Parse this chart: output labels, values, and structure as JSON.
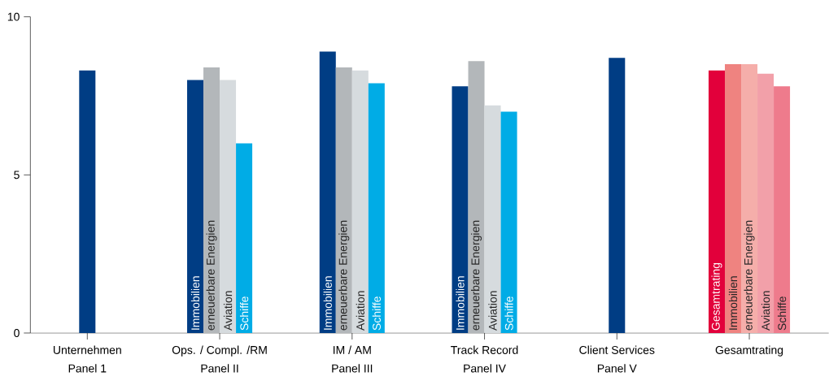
{
  "chart_data": {
    "type": "bar",
    "categories": [
      "Unternehmen\nPanel 1",
      "Ops. / Compl.  /RM\nPanel II",
      "IM / AM\nPanel III",
      "Track Record\nPanel IV",
      "Client Services\nPanel V",
      "Gesamtrating"
    ],
    "series": [
      {
        "values": [
          8.3,
          null,
          null,
          null,
          8.7,
          null
        ],
        "colors": [
          "#003d84",
          null,
          null,
          null,
          "#003d84",
          null
        ]
      },
      {
        "name": "Gesamtrating",
        "values": [
          null,
          null,
          null,
          null,
          null,
          8.3
        ],
        "colors": [
          null,
          null,
          null,
          null,
          null,
          "#e2003b"
        ]
      },
      {
        "name": "Immobilien",
        "values": [
          null,
          8.0,
          8.9,
          7.8,
          null,
          8.5
        ],
        "colors": [
          null,
          "#003d84",
          "#003d84",
          "#003d84",
          null,
          "#ef8380"
        ]
      },
      {
        "name": "erneuerbare Energien",
        "values": [
          null,
          8.4,
          8.4,
          8.6,
          null,
          8.5
        ],
        "colors": [
          null,
          "#b3b7ba",
          "#b3b7ba",
          "#b3b7ba",
          null,
          "#f5aeaa"
        ]
      },
      {
        "name": "Aviation",
        "values": [
          null,
          8.0,
          8.3,
          7.2,
          null,
          8.2
        ],
        "colors": [
          null,
          "#d6dbde",
          "#d6dbde",
          "#d6dbde",
          null,
          "#f2a0a9"
        ]
      },
      {
        "name": "Schiffe",
        "values": [
          null,
          6.0,
          7.9,
          7.0,
          null,
          7.8
        ],
        "colors": [
          null,
          "#00ace6",
          "#00ace6",
          "#00ace6",
          null,
          "#ee7b8c"
        ]
      }
    ],
    "ylim": [
      0,
      10
    ],
    "yticks": [
      0,
      5,
      10
    ],
    "grid": false
  }
}
